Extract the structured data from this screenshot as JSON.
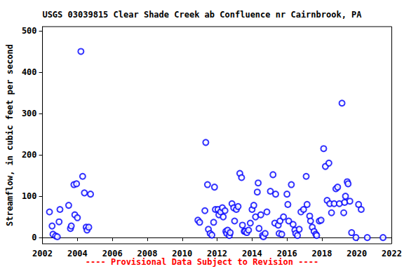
{
  "chart_data": {
    "type": "scatter",
    "title": "USGS 03039815 Clear Shade Creek ab Confluence nr Cairnbrook, PA",
    "y_label": "Streamflow, in cubic feet per second",
    "annotations": [
      "---- Provisional Data Subject to Revision ----"
    ],
    "color": "#0000ff",
    "marker": "open_circle",
    "grid": false,
    "xlim": [
      2002,
      2022
    ],
    "xticks": [
      2002,
      2004,
      2006,
      2008,
      2010,
      2012,
      2014,
      2016,
      2018,
      2020,
      2022
    ],
    "ylim": [
      -15,
      510
    ],
    "yticks": [
      0,
      100,
      200,
      300,
      400,
      500
    ],
    "x": [
      2002.4,
      2002.55,
      2002.6,
      2002.75,
      2002.85,
      2002.95,
      2003.0,
      2003.5,
      2003.6,
      2003.65,
      2003.8,
      2003.85,
      2003.95,
      2004.0,
      2004.2,
      2004.3,
      2004.4,
      2004.5,
      2004.55,
      2004.65,
      2004.75,
      2010.9,
      2011.0,
      2011.3,
      2011.35,
      2011.45,
      2011.5,
      2011.6,
      2011.7,
      2011.8,
      2011.85,
      2011.9,
      2012.05,
      2012.1,
      2012.2,
      2012.3,
      2012.35,
      2012.45,
      2012.5,
      2012.55,
      2012.6,
      2012.7,
      2012.75,
      2012.85,
      2012.95,
      2013.0,
      2013.1,
      2013.2,
      2013.3,
      2013.4,
      2013.45,
      2013.55,
      2013.6,
      2013.7,
      2013.8,
      2013.9,
      2014.0,
      2014.1,
      2014.2,
      2014.3,
      2014.35,
      2014.4,
      2014.5,
      2014.6,
      2014.65,
      2014.75,
      2014.85,
      2015.05,
      2015.2,
      2015.3,
      2015.35,
      2015.5,
      2015.55,
      2015.6,
      2015.7,
      2015.8,
      2016.0,
      2016.05,
      2016.1,
      2016.25,
      2016.35,
      2016.45,
      2016.5,
      2016.6,
      2016.7,
      2016.8,
      2016.95,
      2017.1,
      2017.15,
      2017.3,
      2017.35,
      2017.45,
      2017.55,
      2017.65,
      2017.7,
      2017.85,
      2017.95,
      2018.1,
      2018.2,
      2018.3,
      2018.4,
      2018.45,
      2018.55,
      2018.7,
      2018.8,
      2018.9,
      2019.0,
      2019.15,
      2019.25,
      2019.3,
      2019.35,
      2019.45,
      2019.5,
      2019.6,
      2019.7,
      2019.95,
      2020.1,
      2020.25,
      2020.6,
      2021.5
    ],
    "values": [
      62,
      28,
      8,
      4,
      2,
      38,
      68,
      78,
      22,
      28,
      128,
      55,
      130,
      48,
      450,
      148,
      108,
      25,
      18,
      25,
      105,
      42,
      37,
      65,
      230,
      128,
      20,
      10,
      6,
      37,
      122,
      68,
      68,
      55,
      62,
      72,
      50,
      65,
      15,
      10,
      18,
      5,
      12,
      82,
      72,
      40,
      68,
      75,
      155,
      145,
      30,
      15,
      15,
      12,
      18,
      35,
      68,
      78,
      50,
      110,
      132,
      22,
      55,
      5,
      2,
      10,
      62,
      112,
      152,
      35,
      105,
      30,
      10,
      40,
      8,
      50,
      105,
      80,
      40,
      128,
      32,
      18,
      10,
      5,
      20,
      62,
      68,
      148,
      80,
      52,
      40,
      25,
      15,
      8,
      5,
      40,
      42,
      215,
      172,
      90,
      180,
      82,
      60,
      82,
      118,
      122,
      82,
      325,
      60,
      85,
      100,
      135,
      130,
      88,
      12,
      0,
      80,
      68,
      0,
      0
    ]
  }
}
